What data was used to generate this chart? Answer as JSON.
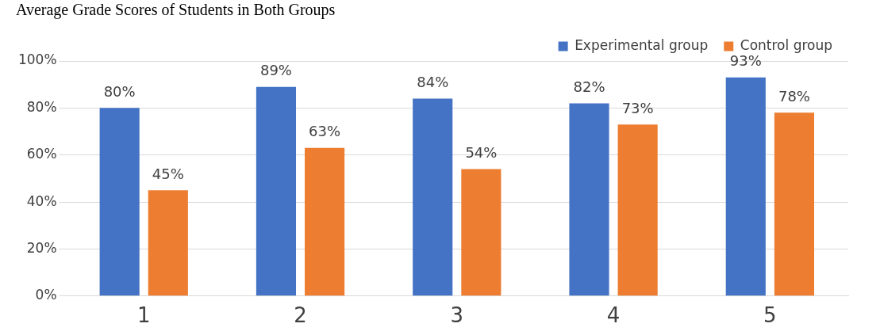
{
  "chart_data": {
    "type": "bar",
    "title": "Average Grade Scores of Students in Both Groups",
    "categories": [
      "1",
      "2",
      "3",
      "4",
      "5"
    ],
    "series": [
      {
        "name": "Experimental group",
        "color": "#4472c4",
        "values": [
          80,
          89,
          84,
          82,
          93
        ],
        "value_labels": [
          "80%",
          "89%",
          "84%",
          "82%",
          "93%"
        ]
      },
      {
        "name": "Control group",
        "color": "#ed7d31",
        "values": [
          45,
          63,
          54,
          73,
          78
        ],
        "value_labels": [
          "45%",
          "63%",
          "54%",
          "73%",
          "78%"
        ]
      }
    ],
    "ylim": [
      0,
      100
    ],
    "yticks": [
      {
        "value": 0,
        "label": "0%"
      },
      {
        "value": 20,
        "label": "20%"
      },
      {
        "value": 40,
        "label": "40%"
      },
      {
        "value": 60,
        "label": "60%"
      },
      {
        "value": 80,
        "label": "80%"
      },
      {
        "value": 100,
        "label": "100%"
      }
    ],
    "grid": "y",
    "legend": "top right"
  }
}
